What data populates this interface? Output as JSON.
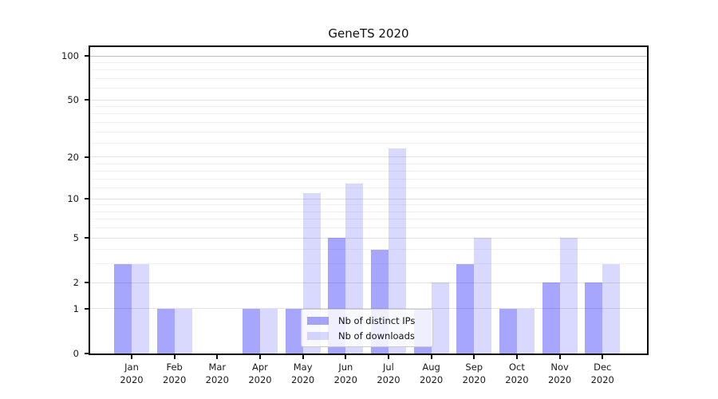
{
  "chart_data": {
    "type": "bar",
    "title": "GeneTS 2020",
    "categories": [
      "Jan 2020",
      "Feb 2020",
      "Mar 2020",
      "Apr 2020",
      "May 2020",
      "Jun 2020",
      "Jul 2020",
      "Aug 2020",
      "Sep 2020",
      "Oct 2020",
      "Nov 2020",
      "Dec 2020"
    ],
    "x_tick_months": [
      "Jan",
      "Feb",
      "Mar",
      "Apr",
      "May",
      "Jun",
      "Jul",
      "Aug",
      "Sep",
      "Oct",
      "Nov",
      "Dec"
    ],
    "x_tick_year": "2020",
    "series": [
      {
        "name": "Nb of distinct IPs",
        "color": "rgba(0,0,255,0.35)",
        "effective_hex": "#a6a6ff",
        "values": [
          3,
          1,
          0,
          1,
          1,
          5,
          4,
          1,
          3,
          1,
          2,
          2
        ]
      },
      {
        "name": "Nb of downloads",
        "color": "rgba(0,0,255,0.15)",
        "effective_hex": "#d9d9ff",
        "values": [
          3,
          1,
          0,
          1,
          11,
          13,
          23,
          2,
          5,
          1,
          5,
          3
        ]
      }
    ],
    "xlabel": "",
    "ylabel": "",
    "y_scale": "log1p",
    "ylim": [
      0,
      113
    ],
    "y_major_ticks": [
      0,
      1,
      2,
      5,
      10,
      20,
      50,
      100
    ],
    "y_minor_ticks": [
      3,
      4,
      6,
      7,
      8,
      9,
      12,
      14,
      16,
      18,
      25,
      30,
      35,
      40,
      45,
      60,
      70,
      80,
      90
    ],
    "grid": true,
    "legend_position": "lower center"
  },
  "colors": {
    "background": "#ffffff",
    "spine": "#000000",
    "grid_major": "#e3e3e3",
    "grid_minor": "#f2f2f2",
    "grid_top_major": "#bfbfbf",
    "tick_label": "#1a1a1a",
    "legend_border": "#cccccc"
  }
}
